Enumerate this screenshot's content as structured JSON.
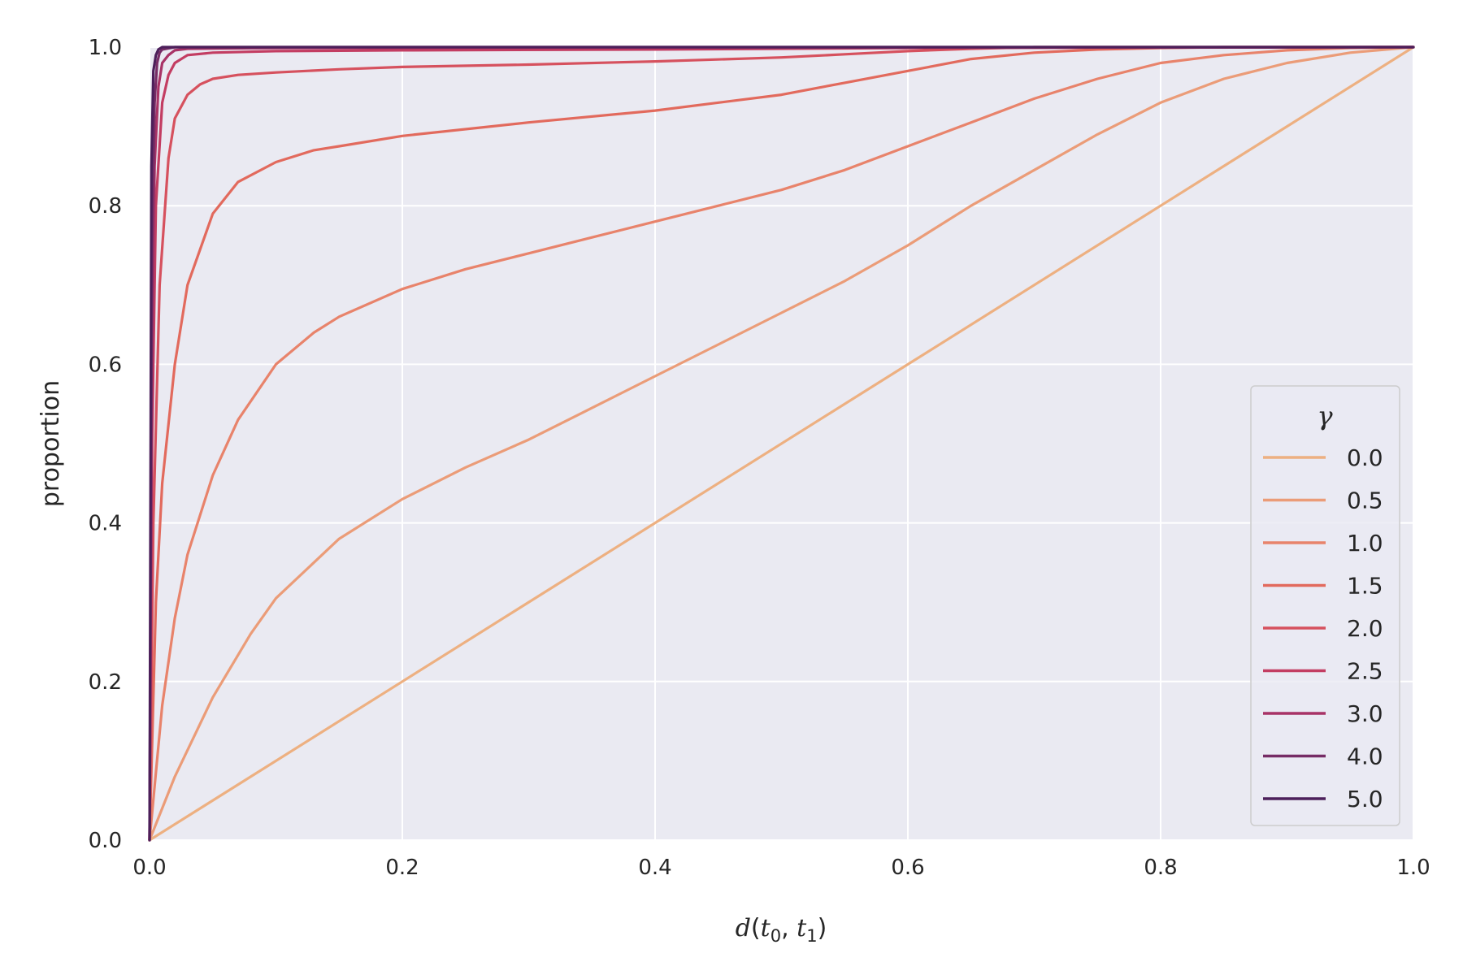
{
  "chart_data": {
    "type": "line",
    "title": "",
    "xlabel": {
      "d": "d",
      "t": "t",
      "sub0": "0",
      "sub1": "1"
    },
    "ylabel": "proportion",
    "xlim": [
      0.0,
      1.0
    ],
    "ylim": [
      0.0,
      1.0
    ],
    "xticks": [
      "0.0",
      "0.2",
      "0.4",
      "0.6",
      "0.8",
      "1.0"
    ],
    "yticks": [
      "0.0",
      "0.2",
      "0.4",
      "0.6",
      "0.8",
      "1.0"
    ],
    "grid": true,
    "legend": {
      "title": "γ",
      "position": "lower-right"
    },
    "series": [
      {
        "name": "0.0",
        "color": "#edb081",
        "x": [
          0,
          0.2,
          0.4,
          0.6,
          0.8,
          1.0
        ],
        "y": [
          0,
          0.2,
          0.4,
          0.6,
          0.8,
          1.0
        ]
      },
      {
        "name": "0.5",
        "color": "#eb9c78",
        "x": [
          0,
          0.02,
          0.05,
          0.08,
          0.1,
          0.15,
          0.2,
          0.25,
          0.3,
          0.35,
          0.4,
          0.45,
          0.5,
          0.55,
          0.6,
          0.65,
          0.7,
          0.75,
          0.8,
          0.85,
          0.9,
          0.95,
          1.0
        ],
        "y": [
          0,
          0.08,
          0.18,
          0.26,
          0.305,
          0.38,
          0.43,
          0.47,
          0.505,
          0.545,
          0.585,
          0.625,
          0.665,
          0.705,
          0.75,
          0.8,
          0.845,
          0.89,
          0.93,
          0.96,
          0.98,
          0.993,
          1.0
        ]
      },
      {
        "name": "1.0",
        "color": "#e8836b",
        "x": [
          0,
          0.01,
          0.02,
          0.03,
          0.05,
          0.07,
          0.1,
          0.13,
          0.15,
          0.2,
          0.25,
          0.3,
          0.35,
          0.4,
          0.45,
          0.5,
          0.55,
          0.6,
          0.65,
          0.7,
          0.75,
          0.8,
          0.85,
          0.9,
          0.95,
          1.0
        ],
        "y": [
          0,
          0.17,
          0.28,
          0.36,
          0.46,
          0.53,
          0.6,
          0.64,
          0.66,
          0.695,
          0.72,
          0.74,
          0.76,
          0.78,
          0.8,
          0.82,
          0.845,
          0.875,
          0.905,
          0.935,
          0.96,
          0.98,
          0.99,
          0.996,
          0.999,
          1.0
        ]
      },
      {
        "name": "1.5",
        "color": "#e26a5d",
        "x": [
          0,
          0.005,
          0.01,
          0.02,
          0.03,
          0.05,
          0.07,
          0.1,
          0.13,
          0.15,
          0.2,
          0.3,
          0.4,
          0.5,
          0.55,
          0.6,
          0.65,
          0.7,
          0.75,
          0.8,
          0.85,
          0.9,
          1.0
        ],
        "y": [
          0,
          0.3,
          0.45,
          0.6,
          0.7,
          0.79,
          0.83,
          0.855,
          0.87,
          0.875,
          0.888,
          0.905,
          0.92,
          0.94,
          0.955,
          0.97,
          0.985,
          0.993,
          0.997,
          0.999,
          1.0,
          1.0,
          1.0
        ]
      },
      {
        "name": "2.0",
        "color": "#d6515e",
        "x": [
          0,
          0.003,
          0.008,
          0.015,
          0.02,
          0.03,
          0.04,
          0.05,
          0.07,
          0.1,
          0.15,
          0.2,
          0.3,
          0.4,
          0.5,
          0.55,
          0.6,
          0.65,
          0.7,
          0.8,
          1.0
        ],
        "y": [
          0,
          0.4,
          0.7,
          0.86,
          0.91,
          0.94,
          0.953,
          0.96,
          0.965,
          0.968,
          0.972,
          0.975,
          0.978,
          0.982,
          0.987,
          0.991,
          0.995,
          0.998,
          1.0,
          1.0,
          1.0
        ]
      },
      {
        "name": "2.5",
        "color": "#c33d62",
        "x": [
          0,
          0.002,
          0.005,
          0.01,
          0.015,
          0.02,
          0.03,
          0.05,
          0.1,
          0.2,
          0.4,
          0.6,
          1.0
        ],
        "y": [
          0,
          0.5,
          0.8,
          0.93,
          0.965,
          0.98,
          0.99,
          0.993,
          0.995,
          0.996,
          0.997,
          0.999,
          1.0
        ]
      },
      {
        "name": "3.0",
        "color": "#a83366",
        "x": [
          0,
          0.002,
          0.004,
          0.007,
          0.01,
          0.015,
          0.02,
          0.03,
          0.1,
          1.0
        ],
        "y": [
          0,
          0.6,
          0.85,
          0.95,
          0.98,
          0.99,
          0.996,
          0.998,
          0.999,
          1.0
        ]
      },
      {
        "name": "4.0",
        "color": "#762c65",
        "x": [
          0,
          0.002,
          0.004,
          0.006,
          0.008,
          0.01,
          0.02,
          1.0
        ],
        "y": [
          0,
          0.75,
          0.93,
          0.98,
          0.993,
          0.997,
          1.0,
          1.0
        ]
      },
      {
        "name": "5.0",
        "color": "#4c1f5a",
        "x": [
          0,
          0.0015,
          0.003,
          0.005,
          0.007,
          0.01,
          1.0
        ],
        "y": [
          0,
          0.85,
          0.97,
          0.99,
          0.997,
          1.0,
          1.0
        ]
      }
    ]
  }
}
